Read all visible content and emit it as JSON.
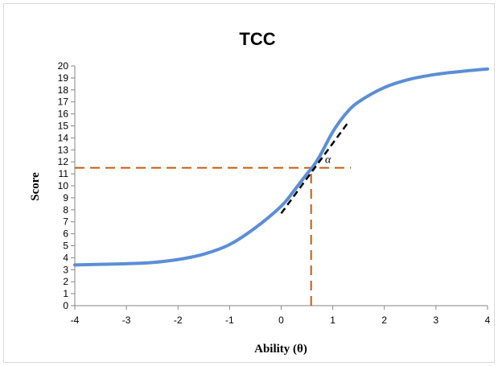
{
  "chart_data": {
    "type": "line",
    "title": "TCC",
    "xlabel": "Ability (θ)",
    "ylabel": "Score",
    "xlim": [
      -4,
      4
    ],
    "ylim": [
      0,
      20
    ],
    "x_ticks": [
      "-4",
      "-3",
      "-2",
      "-1",
      "0",
      "1",
      "2",
      "3",
      "4"
    ],
    "y_ticks": [
      "0",
      "1",
      "2",
      "3",
      "4",
      "5",
      "6",
      "7",
      "8",
      "9",
      "10",
      "11",
      "12",
      "13",
      "14",
      "15",
      "16",
      "17",
      "18",
      "19",
      "20"
    ],
    "grid": false,
    "series": [
      {
        "color": "#5b8ed6",
        "x": [
          -4,
          -3.5,
          -3,
          -2.5,
          -2,
          -1.5,
          -1,
          -0.5,
          0,
          0.25,
          0.5,
          0.6,
          0.75,
          1,
          1.25,
          1.5,
          2,
          2.5,
          3,
          3.5,
          4
        ],
        "y": [
          3.4,
          3.45,
          3.5,
          3.6,
          3.85,
          4.3,
          5.1,
          6.5,
          8.3,
          9.6,
          11.0,
          11.5,
          12.5,
          14.5,
          16.0,
          17.0,
          18.2,
          18.9,
          19.3,
          19.55,
          19.75
        ]
      }
    ],
    "tangent": {
      "color": "#000000",
      "x": [
        0,
        1.3
      ],
      "y": [
        7.7,
        15.3
      ]
    },
    "reference_lines": {
      "color": "#c55a11",
      "horizontal_y": 11.5,
      "horizontal_x_range": [
        -4,
        1.35
      ],
      "vertical_x": 0.58,
      "vertical_y_range": [
        0,
        11.5
      ]
    },
    "annotations": [
      {
        "text": "α",
        "x": 0.85,
        "y": 11.9
      }
    ]
  }
}
